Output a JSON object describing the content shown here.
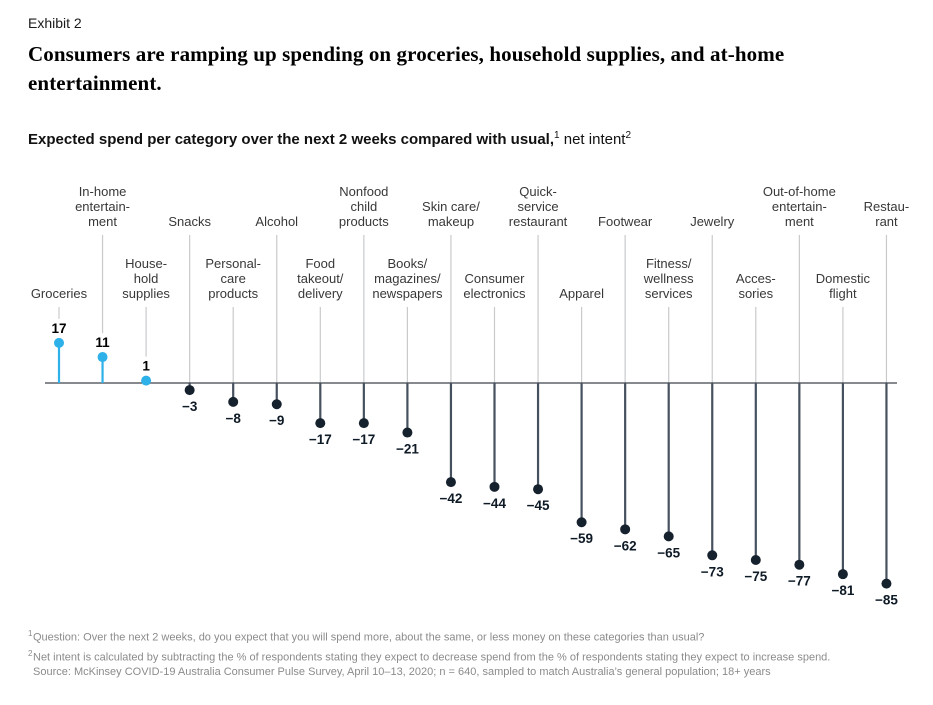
{
  "header": {
    "exhibit_label": "Exhibit 2",
    "title": "Consumers are ramping up spending on groceries, household supplies, and at-home entertainment."
  },
  "subtitle": {
    "bold": "Expected spend per category over the next 2 weeks compared with usual,",
    "sup1": "1",
    "regular": " net intent",
    "sup2": "2"
  },
  "chart_data": {
    "type": "bar",
    "variant": "lollipop",
    "title": "Expected spend per category over the next 2 weeks compared with usual, net intent",
    "ylim": [
      -85,
      17
    ],
    "grid": false,
    "categories": [
      "Groceries",
      "In-home entertainment",
      "Household supplies",
      "Snacks",
      "Personal-care products",
      "Alcohol",
      "Food takeout/delivery",
      "Nonfood child products",
      "Books/magazines/newspapers",
      "Skin care/makeup",
      "Consumer electronics",
      "Quick-service restaurant",
      "Apparel",
      "Footwear",
      "Fitness/wellness services",
      "Jewelry",
      "Accessories",
      "Out-of-home entertainment",
      "Domestic flight",
      "Restaurant"
    ],
    "values": [
      17,
      11,
      1,
      -3,
      -8,
      -9,
      -17,
      -17,
      -21,
      -42,
      -44,
      -45,
      -59,
      -62,
      -65,
      -73,
      -75,
      -77,
      -81,
      -85
    ],
    "columns": [
      {
        "label_lines": [
          "Groceries"
        ],
        "row": "bottom",
        "value": 17
      },
      {
        "label_lines": [
          "In-home",
          "entertain-",
          "ment"
        ],
        "row": "top",
        "value": 11
      },
      {
        "label_lines": [
          "House-",
          "hold",
          "supplies"
        ],
        "row": "bottom",
        "value": 1
      },
      {
        "label_lines": [
          "Snacks"
        ],
        "row": "top",
        "value": -3
      },
      {
        "label_lines": [
          "Personal-",
          "care",
          "products"
        ],
        "row": "bottom",
        "value": -8
      },
      {
        "label_lines": [
          "Alcohol"
        ],
        "row": "top",
        "value": -9
      },
      {
        "label_lines": [
          "Food",
          "takeout/",
          "delivery"
        ],
        "row": "bottom",
        "value": -17
      },
      {
        "label_lines": [
          "Nonfood",
          "child",
          "products"
        ],
        "row": "top",
        "value": -17
      },
      {
        "label_lines": [
          "Books/",
          "magazines/",
          "newspapers"
        ],
        "row": "bottom",
        "value": -21
      },
      {
        "label_lines": [
          "Skin care/",
          "makeup"
        ],
        "row": "top",
        "value": -42
      },
      {
        "label_lines": [
          "Consumer",
          "electronics"
        ],
        "row": "bottom",
        "value": -44
      },
      {
        "label_lines": [
          "Quick-",
          "service",
          "restaurant"
        ],
        "row": "top",
        "value": -45
      },
      {
        "label_lines": [
          "Apparel"
        ],
        "row": "bottom",
        "value": -59
      },
      {
        "label_lines": [
          "Footwear"
        ],
        "row": "top",
        "value": -62
      },
      {
        "label_lines": [
          "Fitness/",
          "wellness",
          "services"
        ],
        "row": "bottom",
        "value": -65
      },
      {
        "label_lines": [
          "Jewelry"
        ],
        "row": "top",
        "value": -73
      },
      {
        "label_lines": [
          "Acces-",
          "sories"
        ],
        "row": "bottom",
        "value": -75
      },
      {
        "label_lines": [
          "Out-of-home",
          "entertain-",
          "ment"
        ],
        "row": "top",
        "value": -77
      },
      {
        "label_lines": [
          "Domestic",
          "flight"
        ],
        "row": "bottom",
        "value": -81
      },
      {
        "label_lines": [
          "Restau-",
          "rant"
        ],
        "row": "top",
        "value": -85
      }
    ]
  },
  "colors": {
    "positive": "#2eb1e8",
    "negative_dot": "#16212e",
    "negative_stem": "#46515f",
    "leader_line": "#c9cacc",
    "baseline": "#3d434b",
    "category_label": "#383838",
    "value_positive": "#000000",
    "value_negative": "#0e1a26"
  },
  "footnotes": [
    {
      "sup": "1",
      "text": "Question: Over the next 2 weeks, do you expect that you will spend more, about the same, or less money on these categories than usual?"
    },
    {
      "sup": "2",
      "text": "Net intent is calculated by subtracting the % of respondents stating they expect to decrease spend from the % of respondents stating they expect to increase spend."
    },
    {
      "sup": "",
      "text": "Source: McKinsey COVID-19 Australia Consumer Pulse Survey, April 10–13, 2020; n = 640, sampled to match Australia’s general population; 18+ years"
    }
  ]
}
